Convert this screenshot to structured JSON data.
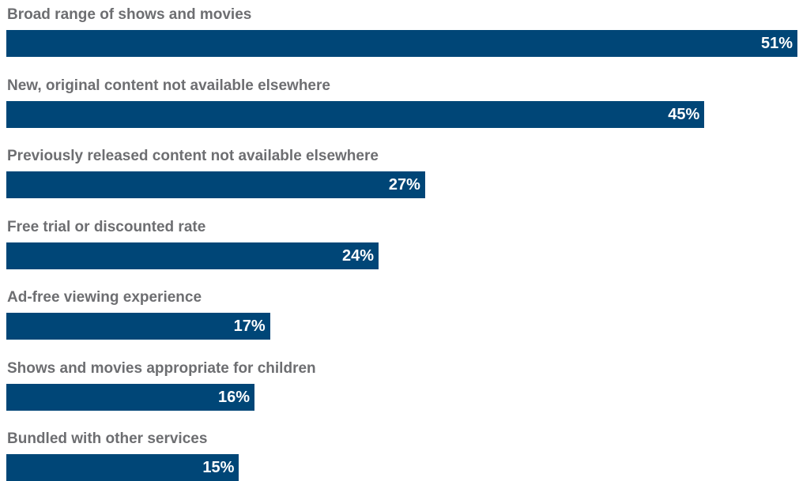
{
  "chart_data": {
    "type": "bar",
    "orientation": "horizontal",
    "categories": [
      "Broad range of shows and movies",
      "New, original content not available elsewhere",
      "Previously released content not available elsewhere",
      "Free trial or discounted rate",
      "Ad-free viewing experience",
      "Shows and movies appropriate for children",
      "Bundled with other services"
    ],
    "values": [
      51,
      45,
      27,
      24,
      17,
      16,
      15
    ],
    "value_labels": [
      "51%",
      "45%",
      "27%",
      "24%",
      "17%",
      "16%",
      "15%"
    ],
    "unit": "%",
    "xlim": [
      0,
      51
    ],
    "grid": false,
    "legend": "none",
    "colors": {
      "bar": "#004677",
      "label": "#6d6e71",
      "value_text": "#ffffff"
    }
  }
}
